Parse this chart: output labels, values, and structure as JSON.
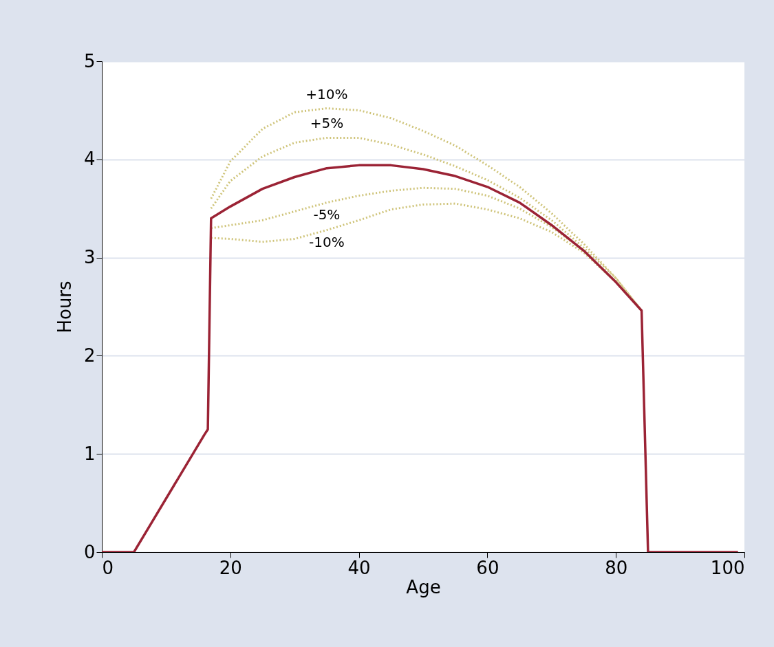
{
  "chart_data": {
    "type": "line",
    "xlabel": "Age",
    "ylabel": "Hours",
    "xlim": [
      0,
      100
    ],
    "ylim": [
      0,
      5
    ],
    "xticks": [
      0,
      20,
      40,
      60,
      80,
      100
    ],
    "yticks": [
      0,
      1,
      2,
      3,
      4,
      5
    ],
    "grid": "y",
    "legend": false,
    "marker": "none",
    "series": [
      {
        "color": "#9b2335",
        "line_style": "solid",
        "x": [
          0,
          5,
          16,
          16.5,
          17,
          20,
          25,
          30,
          35,
          40,
          45,
          50,
          55,
          60,
          65,
          70,
          75,
          80,
          84,
          85,
          99
        ],
        "values": [
          0,
          0,
          1.2,
          1.25,
          3.4,
          3.52,
          3.7,
          3.82,
          3.91,
          3.94,
          3.94,
          3.9,
          3.83,
          3.72,
          3.56,
          3.33,
          3.07,
          2.75,
          2.46,
          0,
          0
        ]
      },
      {
        "name": "+10%",
        "color": "#cfc47a",
        "line_style": "dotted",
        "x": [
          17,
          20,
          25,
          30,
          35,
          40,
          45,
          50,
          55,
          60,
          65,
          70,
          75,
          80,
          84
        ],
        "values": [
          3.6,
          3.98,
          4.31,
          4.48,
          4.52,
          4.5,
          4.42,
          4.29,
          4.14,
          3.94,
          3.72,
          3.45,
          3.14,
          2.79,
          2.46
        ]
      },
      {
        "name": "+5%",
        "color": "#cfc47a",
        "line_style": "dotted",
        "x": [
          17,
          20,
          25,
          30,
          35,
          40,
          45,
          50,
          55,
          60,
          65,
          70,
          75,
          80,
          84
        ],
        "values": [
          3.5,
          3.78,
          4.03,
          4.17,
          4.22,
          4.22,
          4.15,
          4.05,
          3.93,
          3.79,
          3.61,
          3.38,
          3.1,
          2.79,
          2.46
        ]
      },
      {
        "name": "-5%",
        "color": "#cfc47a",
        "line_style": "dotted",
        "x": [
          17,
          20,
          25,
          30,
          35,
          40,
          45,
          50,
          55,
          60,
          65,
          70,
          75,
          80,
          84
        ],
        "values": [
          3.3,
          3.33,
          3.38,
          3.47,
          3.56,
          3.63,
          3.68,
          3.71,
          3.7,
          3.63,
          3.5,
          3.31,
          3.07,
          2.75,
          2.46
        ]
      },
      {
        "name": "-10%",
        "color": "#cfc47a",
        "line_style": "dotted",
        "x": [
          17,
          20,
          25,
          30,
          35,
          40,
          45,
          50,
          55,
          60,
          65,
          70,
          75,
          80,
          84
        ],
        "values": [
          3.2,
          3.19,
          3.16,
          3.19,
          3.28,
          3.38,
          3.49,
          3.54,
          3.55,
          3.49,
          3.4,
          3.26,
          3.05,
          2.75,
          2.46
        ]
      }
    ]
  }
}
